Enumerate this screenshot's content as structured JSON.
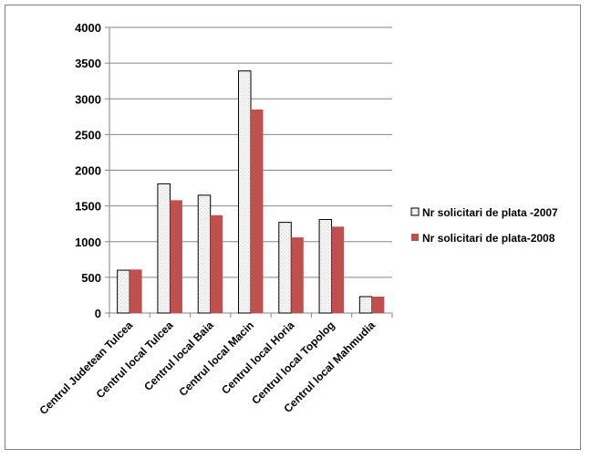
{
  "chart_data": {
    "type": "bar",
    "categories": [
      "Centrul Judetean Tulcea",
      "Centrul local Tulcea",
      "Centrul local Baia",
      "Centrul local Macin",
      "Centrul local Horia",
      "Centrul local Topolog",
      "Centrul local Mahmudia"
    ],
    "series": [
      {
        "name": "Nr solicitari de plata -2007",
        "values": [
          600,
          1810,
          1650,
          3390,
          1270,
          1310,
          230
        ],
        "color": "#f2f2f2"
      },
      {
        "name": "Nr solicitari de plata-2008",
        "values": [
          610,
          1580,
          1370,
          2850,
          1060,
          1210,
          230
        ],
        "color": "#c0504d"
      }
    ],
    "ylim": [
      0,
      4000
    ],
    "yticks": [
      "0",
      "500",
      "1000",
      "1500",
      "2000",
      "2500",
      "3000",
      "3500",
      "4000"
    ],
    "grid": true,
    "legend_position": "right"
  }
}
